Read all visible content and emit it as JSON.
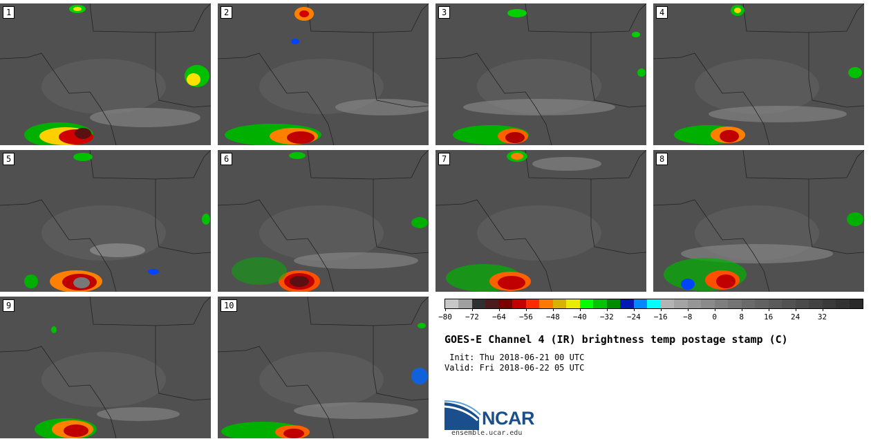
{
  "panels": [
    {
      "label": "1"
    },
    {
      "label": "2"
    },
    {
      "label": "3"
    },
    {
      "label": "4"
    },
    {
      "label": "5"
    },
    {
      "label": "6"
    },
    {
      "label": "7"
    },
    {
      "label": "8"
    },
    {
      "label": "9"
    },
    {
      "label": "10"
    }
  ],
  "colorbar": {
    "colors": [
      "#c8c8c8",
      "#a0a0a0",
      "#303030",
      "#4a1c1c",
      "#7a0000",
      "#c40000",
      "#ff2a00",
      "#ff7800",
      "#d4b400",
      "#e8ec00",
      "#00ff00",
      "#00c400",
      "#008c00",
      "#0018b4",
      "#0088ff",
      "#00ffff",
      "#b4b4b4",
      "#a4a4a4",
      "#969696",
      "#8a8a8a",
      "#7e7e7e",
      "#747474",
      "#6a6a6a",
      "#626262",
      "#5a5a5a",
      "#525252",
      "#4a4a4a",
      "#424242",
      "#3a3a3a",
      "#323232",
      "#2a2a2a"
    ],
    "tick_labels": [
      "−80",
      "−72",
      "−64",
      "−56",
      "−48",
      "−40",
      "−32",
      "−24",
      "−16",
      "−8",
      "0",
      "8",
      "16",
      "24",
      "32"
    ],
    "min": -80,
    "max": 44
  },
  "title": "GOES-E Channel 4 (IR) brightness temp postage stamp (C)",
  "init_text": " Init: Thu 2018-06-21 00 UTC",
  "valid_text": "Valid: Fri 2018-06-22 05 UTC",
  "logo_text": "NCAR",
  "site_text": "ensemble.ucar.edu"
}
